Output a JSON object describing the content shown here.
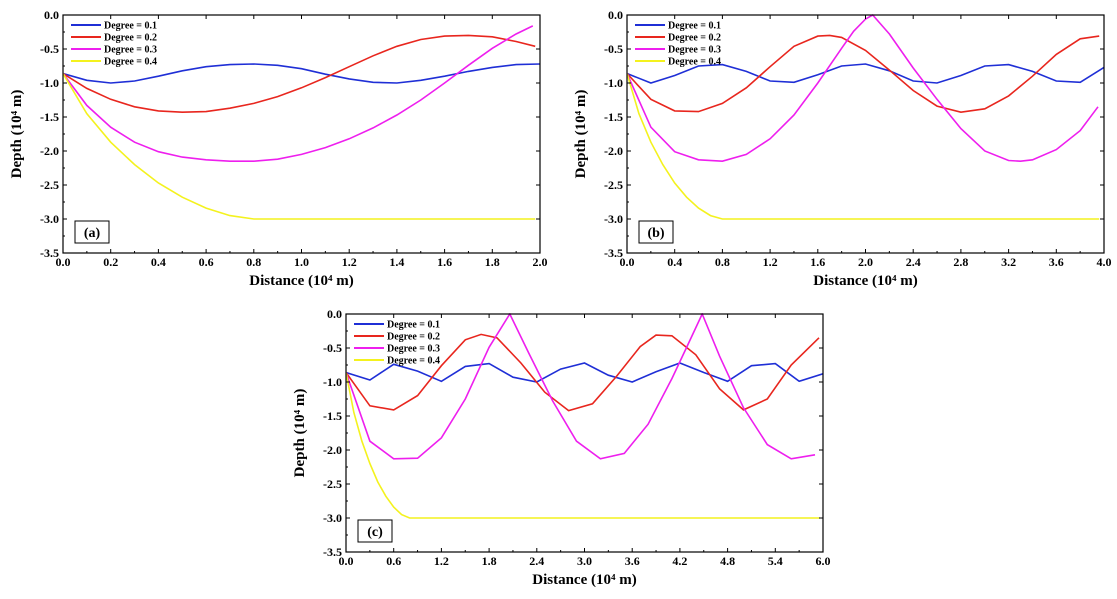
{
  "chart_data": [
    {
      "type": "line",
      "panel_label": "(a)",
      "xlabel": "Distance (10⁴ m)",
      "ylabel": "Depth (10⁴ m)",
      "xlim": [
        0.0,
        2.0
      ],
      "ylim": [
        -3.5,
        0.0
      ],
      "xticks": [
        "0.0",
        "0.2",
        "0.4",
        "0.6",
        "0.8",
        "1.0",
        "1.2",
        "1.4",
        "1.6",
        "1.8",
        "2.0"
      ],
      "yticks": [
        "0.0",
        "-0.5",
        "-1.0",
        "-1.5",
        "-2.0",
        "-2.5",
        "-3.0",
        "-3.5"
      ],
      "legend_position": "top-left",
      "series": [
        {
          "name": "Degree = 0.1",
          "color": "#1f2fd6",
          "x": [
            0.0,
            0.1,
            0.2,
            0.3,
            0.4,
            0.5,
            0.6,
            0.7,
            0.8,
            0.9,
            1.0,
            1.1,
            1.2,
            1.3,
            1.4,
            1.5,
            1.6,
            1.7,
            1.8,
            1.9,
            2.0
          ],
          "y": [
            -0.86,
            -0.96,
            -1.0,
            -0.97,
            -0.9,
            -0.82,
            -0.76,
            -0.73,
            -0.72,
            -0.74,
            -0.79,
            -0.87,
            -0.94,
            -0.99,
            -1.0,
            -0.96,
            -0.9,
            -0.83,
            -0.77,
            -0.73,
            -0.72
          ]
        },
        {
          "name": "Degree = 0.2",
          "color": "#e8261e",
          "x": [
            0.0,
            0.1,
            0.2,
            0.3,
            0.4,
            0.5,
            0.6,
            0.7,
            0.8,
            0.9,
            1.0,
            1.1,
            1.2,
            1.3,
            1.4,
            1.5,
            1.6,
            1.7,
            1.8,
            1.9,
            1.98
          ],
          "y": [
            -0.86,
            -1.08,
            -1.24,
            -1.35,
            -1.41,
            -1.43,
            -1.42,
            -1.37,
            -1.3,
            -1.2,
            -1.07,
            -0.92,
            -0.76,
            -0.6,
            -0.46,
            -0.36,
            -0.31,
            -0.3,
            -0.32,
            -0.39,
            -0.46
          ]
        },
        {
          "name": "Degree = 0.3",
          "color": "#ee1fee",
          "x": [
            0.0,
            0.1,
            0.2,
            0.3,
            0.4,
            0.5,
            0.6,
            0.7,
            0.8,
            0.9,
            1.0,
            1.1,
            1.2,
            1.3,
            1.4,
            1.5,
            1.6,
            1.7,
            1.8,
            1.9,
            1.97
          ],
          "y": [
            -0.86,
            -1.33,
            -1.65,
            -1.87,
            -2.01,
            -2.09,
            -2.13,
            -2.15,
            -2.15,
            -2.12,
            -2.05,
            -1.95,
            -1.82,
            -1.66,
            -1.47,
            -1.25,
            -1.0,
            -0.74,
            -0.49,
            -0.28,
            -0.16
          ]
        },
        {
          "name": "Degree = 0.4",
          "color": "#f4f21e",
          "x": [
            0.0,
            0.1,
            0.2,
            0.3,
            0.4,
            0.5,
            0.6,
            0.7,
            0.8,
            0.81,
            0.9,
            1.0,
            1.2,
            1.4,
            1.6,
            1.8,
            1.98
          ],
          "y": [
            -0.86,
            -1.45,
            -1.87,
            -2.2,
            -2.47,
            -2.68,
            -2.84,
            -2.95,
            -3.0,
            -3.0,
            -3.0,
            -3.0,
            -3.0,
            -3.0,
            -3.0,
            -3.0,
            -3.0
          ]
        }
      ]
    },
    {
      "type": "line",
      "panel_label": "(b)",
      "xlabel": "Distance (10⁴ m)",
      "ylabel": "Depth (10⁴ m)",
      "xlim": [
        0.0,
        4.0
      ],
      "ylim": [
        -3.5,
        0.0
      ],
      "xticks": [
        "0.0",
        "0.4",
        "0.8",
        "1.2",
        "1.6",
        "2.0",
        "2.4",
        "2.8",
        "3.2",
        "3.6",
        "4.0"
      ],
      "yticks": [
        "0.0",
        "-0.5",
        "-1.0",
        "-1.5",
        "-2.0",
        "-2.5",
        "-3.0",
        "-3.5"
      ],
      "legend_position": "top-left",
      "series": [
        {
          "name": "Degree = 0.1",
          "color": "#1f2fd6",
          "x": [
            0.0,
            0.2,
            0.4,
            0.6,
            0.8,
            1.0,
            1.2,
            1.4,
            1.6,
            1.8,
            2.0,
            2.2,
            2.4,
            2.6,
            2.8,
            3.0,
            3.2,
            3.4,
            3.6,
            3.8,
            4.0
          ],
          "y": [
            -0.86,
            -1.0,
            -0.89,
            -0.75,
            -0.73,
            -0.83,
            -0.97,
            -0.99,
            -0.88,
            -0.75,
            -0.72,
            -0.82,
            -0.97,
            -1.0,
            -0.89,
            -0.75,
            -0.73,
            -0.83,
            -0.97,
            -0.99,
            -0.77
          ]
        },
        {
          "name": "Degree = 0.2",
          "color": "#e8261e",
          "x": [
            0.0,
            0.2,
            0.4,
            0.6,
            0.8,
            1.0,
            1.2,
            1.4,
            1.6,
            1.7,
            1.8,
            2.0,
            2.2,
            2.4,
            2.6,
            2.8,
            3.0,
            3.2,
            3.4,
            3.6,
            3.8,
            3.96
          ],
          "y": [
            -0.86,
            -1.24,
            -1.41,
            -1.42,
            -1.3,
            -1.07,
            -0.76,
            -0.46,
            -0.31,
            -0.3,
            -0.33,
            -0.52,
            -0.81,
            -1.11,
            -1.34,
            -1.43,
            -1.38,
            -1.19,
            -0.9,
            -0.58,
            -0.35,
            -0.31
          ]
        },
        {
          "name": "Degree = 0.3",
          "color": "#ee1fee",
          "x": [
            0.0,
            0.2,
            0.4,
            0.6,
            0.8,
            1.0,
            1.2,
            1.4,
            1.6,
            1.8,
            1.9,
            2.0,
            2.06,
            2.2,
            2.4,
            2.6,
            2.8,
            3.0,
            3.2,
            3.3,
            3.4,
            3.6,
            3.8,
            3.95
          ],
          "y": [
            -0.86,
            -1.65,
            -2.01,
            -2.13,
            -2.15,
            -2.05,
            -1.82,
            -1.47,
            -1.0,
            -0.49,
            -0.24,
            -0.06,
            0.0,
            -0.28,
            -0.78,
            -1.24,
            -1.67,
            -2.0,
            -2.14,
            -2.15,
            -2.13,
            -1.98,
            -1.7,
            -1.35
          ]
        },
        {
          "name": "Degree = 0.4",
          "color": "#f4f21e",
          "x": [
            0.0,
            0.1,
            0.2,
            0.3,
            0.4,
            0.5,
            0.6,
            0.7,
            0.8,
            1.0,
            1.6,
            2.4,
            3.2,
            3.96
          ],
          "y": [
            -0.86,
            -1.45,
            -1.87,
            -2.2,
            -2.47,
            -2.68,
            -2.84,
            -2.95,
            -3.0,
            -3.0,
            -3.0,
            -3.0,
            -3.0,
            -3.0
          ]
        }
      ]
    },
    {
      "type": "line",
      "panel_label": "(c)",
      "xlabel": "Distance (10⁴ m)",
      "ylabel": "Depth (10⁴ m)",
      "xlim": [
        0.0,
        6.0
      ],
      "ylim": [
        -3.5,
        0.0
      ],
      "xticks": [
        "0.0",
        "0.6",
        "1.2",
        "1.8",
        "2.4",
        "3.0",
        "3.6",
        "4.2",
        "4.8",
        "5.4",
        "6.0"
      ],
      "yticks": [
        "0.0",
        "-0.5",
        "-1.0",
        "-1.5",
        "-2.0",
        "-2.5",
        "-3.0",
        "-3.5"
      ],
      "legend_position": "top-left",
      "series": [
        {
          "name": "Degree = 0.1",
          "color": "#1f2fd6",
          "x": [
            0.0,
            0.3,
            0.6,
            0.9,
            1.2,
            1.5,
            1.8,
            2.1,
            2.4,
            2.7,
            3.0,
            3.3,
            3.6,
            3.9,
            4.2,
            4.5,
            4.8,
            5.1,
            5.4,
            5.7,
            6.0
          ],
          "y": [
            -0.86,
            -0.97,
            -0.74,
            -0.84,
            -0.99,
            -0.77,
            -0.73,
            -0.93,
            -1.0,
            -0.81,
            -0.72,
            -0.9,
            -1.0,
            -0.85,
            -0.72,
            -0.86,
            -0.99,
            -0.76,
            -0.73,
            -0.99,
            -0.88
          ]
        },
        {
          "name": "Degree = 0.2",
          "color": "#e8261e",
          "x": [
            0.0,
            0.3,
            0.6,
            0.9,
            1.2,
            1.5,
            1.7,
            1.9,
            2.2,
            2.5,
            2.8,
            3.1,
            3.4,
            3.7,
            3.9,
            4.1,
            4.4,
            4.7,
            5.0,
            5.3,
            5.6,
            5.95
          ],
          "y": [
            -0.86,
            -1.35,
            -1.41,
            -1.2,
            -0.76,
            -0.38,
            -0.3,
            -0.35,
            -0.72,
            -1.15,
            -1.42,
            -1.32,
            -0.92,
            -0.48,
            -0.31,
            -0.32,
            -0.6,
            -1.1,
            -1.41,
            -1.25,
            -0.75,
            -0.35
          ]
        },
        {
          "name": "Degree = 0.3",
          "color": "#ee1fee",
          "x": [
            0.0,
            0.3,
            0.6,
            0.9,
            1.2,
            1.5,
            1.8,
            2.06,
            2.3,
            2.6,
            2.9,
            3.2,
            3.5,
            3.8,
            4.1,
            4.3,
            4.48,
            4.7,
            5.0,
            5.3,
            5.6,
            5.9
          ],
          "y": [
            -0.86,
            -1.87,
            -2.13,
            -2.12,
            -1.82,
            -1.25,
            -0.49,
            0.0,
            -0.58,
            -1.28,
            -1.87,
            -2.13,
            -2.05,
            -1.62,
            -0.95,
            -0.45,
            0.0,
            -0.62,
            -1.38,
            -1.92,
            -2.13,
            -2.07
          ]
        },
        {
          "name": "Degree = 0.4",
          "color": "#f4f21e",
          "x": [
            0.0,
            0.1,
            0.2,
            0.3,
            0.4,
            0.5,
            0.6,
            0.7,
            0.8,
            1.2,
            2.4,
            3.6,
            4.8,
            5.96
          ],
          "y": [
            -0.86,
            -1.45,
            -1.87,
            -2.2,
            -2.47,
            -2.68,
            -2.84,
            -2.95,
            -3.0,
            -3.0,
            -3.0,
            -3.0,
            -3.0,
            -3.0
          ]
        }
      ]
    }
  ]
}
